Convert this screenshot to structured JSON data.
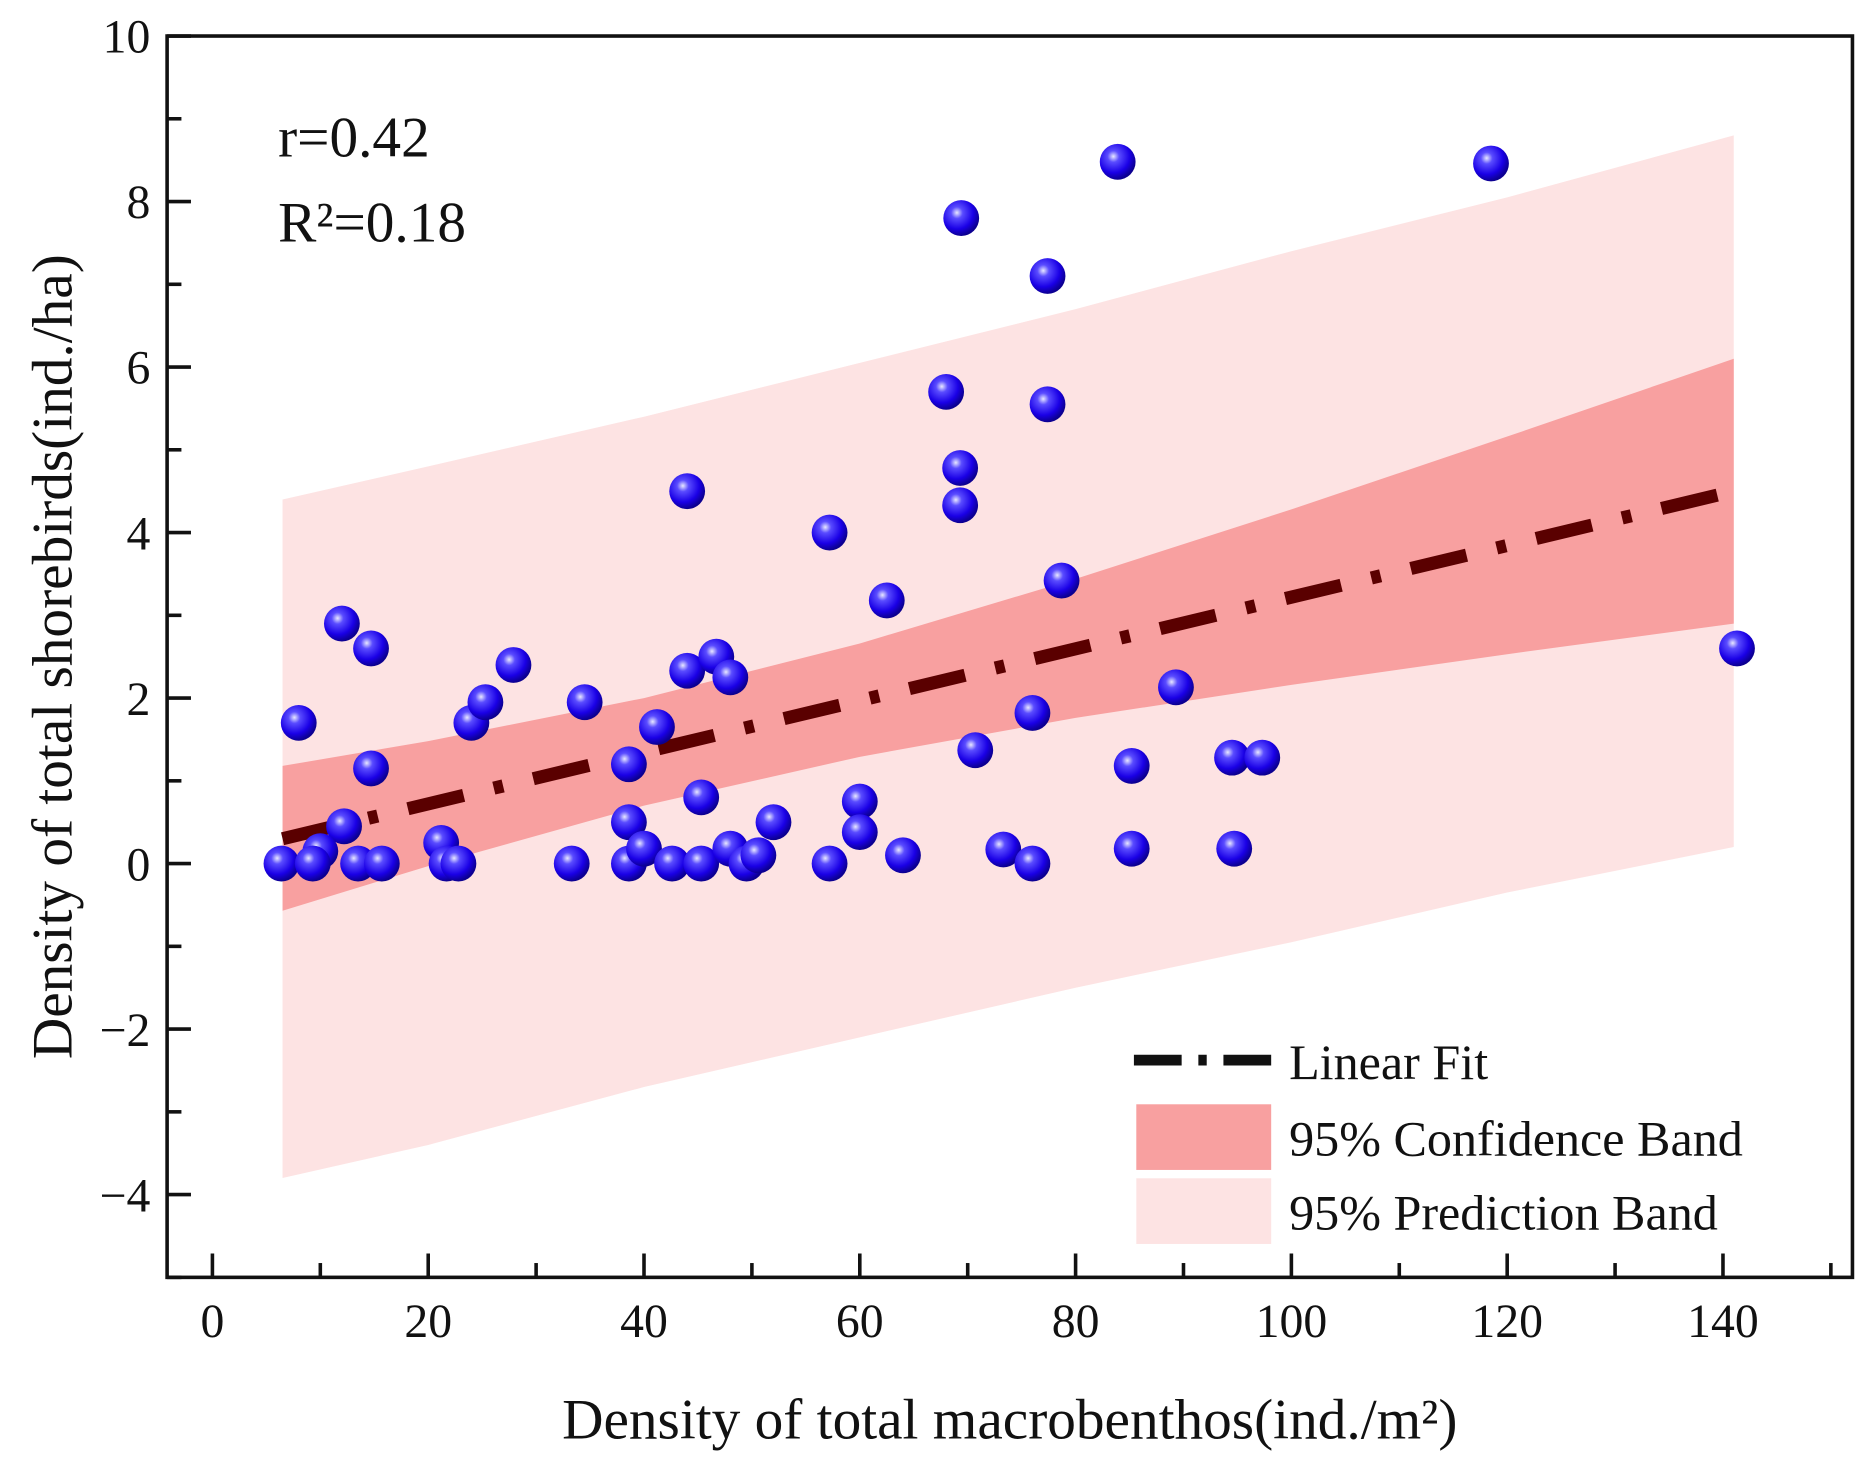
{
  "chart_data": {
    "type": "scatter",
    "xlabel": "Density of total macrobenthos(ind./m²)",
    "ylabel": "Density of total shorebirds(ind./ha)",
    "xlim": [
      -4.2,
      152
    ],
    "ylim": [
      -5,
      10
    ],
    "xticks": [
      0,
      20,
      40,
      60,
      80,
      100,
      120,
      140
    ],
    "yticks": [
      -4,
      -2,
      0,
      2,
      4,
      6,
      8,
      10
    ],
    "xtick_labels": [
      "0",
      "20",
      "40",
      "60",
      "80",
      "100",
      "120",
      "140"
    ],
    "ytick_labels": [
      "−4",
      "−2",
      "0",
      "2",
      "4",
      "6",
      "8",
      "10"
    ],
    "grid": false,
    "annotations": {
      "r": "r=0.42",
      "r2": "R²=0.18"
    },
    "legend": {
      "placement": "bottom-right",
      "entries": [
        "Linear Fit",
        "95% Confidence Band",
        "95% Prediction Band"
      ]
    },
    "colors": {
      "points": "#1a00e6",
      "fit_line": "#5a0000",
      "confidence_band": "#f8a0a0",
      "prediction_band": "#fde3e3"
    },
    "points": [
      [
        6.4,
        0
      ],
      [
        8,
        1.7
      ],
      [
        12,
        2.9
      ],
      [
        14.7,
        2.6
      ],
      [
        14.7,
        1.15
      ],
      [
        12.2,
        0.45
      ],
      [
        10,
        0.15
      ],
      [
        9.3,
        0
      ],
      [
        13.5,
        0
      ],
      [
        15.7,
        0
      ],
      [
        21.2,
        0.25
      ],
      [
        21.7,
        0
      ],
      [
        22.8,
        0
      ],
      [
        24,
        1.7
      ],
      [
        25.3,
        1.95
      ],
      [
        27.9,
        2.4
      ],
      [
        33.3,
        0
      ],
      [
        34.5,
        1.95
      ],
      [
        38.6,
        1.2
      ],
      [
        38.6,
        0.5
      ],
      [
        38.6,
        0
      ],
      [
        40,
        0.18
      ],
      [
        41.2,
        1.65
      ],
      [
        42.6,
        0
      ],
      [
        44,
        4.5
      ],
      [
        44,
        2.33
      ],
      [
        45.3,
        0.8
      ],
      [
        45.3,
        0
      ],
      [
        46.7,
        2.5
      ],
      [
        48,
        2.25
      ],
      [
        48,
        0.18
      ],
      [
        49.5,
        0
      ],
      [
        50.6,
        0.1
      ],
      [
        52,
        0.5
      ],
      [
        57.2,
        4.0
      ],
      [
        57.2,
        0
      ],
      [
        60,
        0.75
      ],
      [
        60,
        0.38
      ],
      [
        62.5,
        3.18
      ],
      [
        64,
        0.1
      ],
      [
        68,
        5.7
      ],
      [
        69.4,
        7.8
      ],
      [
        69.3,
        4.78
      ],
      [
        69.3,
        4.33
      ],
      [
        70.7,
        1.37
      ],
      [
        73.3,
        0.17
      ],
      [
        76,
        0
      ],
      [
        76,
        1.82
      ],
      [
        77.4,
        7.1
      ],
      [
        77.4,
        5.55
      ],
      [
        78.7,
        3.42
      ],
      [
        83.9,
        8.48
      ],
      [
        85.2,
        1.18
      ],
      [
        85.2,
        0.18
      ],
      [
        89.3,
        2.13
      ],
      [
        94.5,
        1.28
      ],
      [
        94.7,
        0.18
      ],
      [
        97.3,
        1.28
      ],
      [
        118.5,
        8.46
      ],
      [
        141.3,
        2.6
      ]
    ],
    "linear_fit": {
      "x": [
        6.5,
        141
      ],
      "y": [
        0.3,
        4.5
      ]
    },
    "confidence_band": {
      "x": [
        6.5,
        20,
        40,
        60,
        80,
        100,
        120,
        141
      ],
      "lower": [
        -0.57,
        -0.03,
        0.7,
        1.29,
        1.76,
        2.16,
        2.53,
        2.9
      ],
      "upper": [
        1.18,
        1.48,
        2.0,
        2.66,
        3.44,
        4.28,
        5.16,
        6.1
      ]
    },
    "prediction_band": {
      "x": [
        6.5,
        20,
        40,
        60,
        80,
        100,
        120,
        141
      ],
      "lower": [
        -3.8,
        -3.4,
        -2.7,
        -2.1,
        -1.5,
        -0.95,
        -0.35,
        0.2
      ],
      "upper": [
        4.4,
        4.8,
        5.4,
        6.05,
        6.7,
        7.4,
        8.05,
        8.8
      ]
    }
  }
}
